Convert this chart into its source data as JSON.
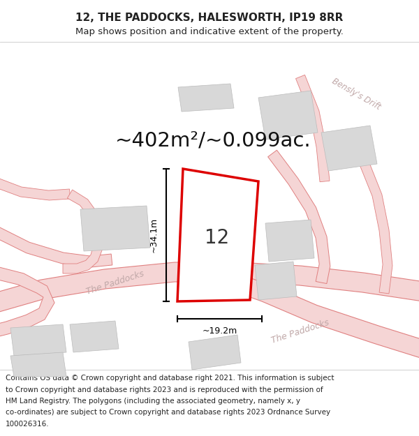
{
  "title_line1": "12, THE PADDOCKS, HALESWORTH, IP19 8RR",
  "title_line2": "Map shows position and indicative extent of the property.",
  "area_text": "~402m²/~0.099ac.",
  "property_number": "12",
  "dim_vertical": "~34.1m",
  "dim_horizontal": "~19.2m",
  "road_label1": "The Paddocks",
  "road_label2": "The Paddocks",
  "road_label3": "Bensly's Drift",
  "footer_lines": [
    "Contains OS data © Crown copyright and database right 2021. This information is subject",
    "to Crown copyright and database rights 2023 and is reproduced with the permission of",
    "HM Land Registry. The polygons (including the associated geometry, namely x, y",
    "co-ordinates) are subject to Crown copyright and database rights 2023 Ordnance Survey",
    "100026316."
  ],
  "map_bg": "#ffffff",
  "road_fill_color": "#f5d5d5",
  "road_edge_color": "#e08080",
  "building_color": "#d8d8d8",
  "building_edge_color": "#bbbbbb",
  "property_outline_color": "#dd0000",
  "text_color": "#222222",
  "road_label_color": "#c0a8a8",
  "title_fontsize": 11,
  "subtitle_fontsize": 9.5,
  "area_fontsize": 21,
  "number_fontsize": 20,
  "footer_fontsize": 7.5,
  "road_label_fontsize": 9
}
